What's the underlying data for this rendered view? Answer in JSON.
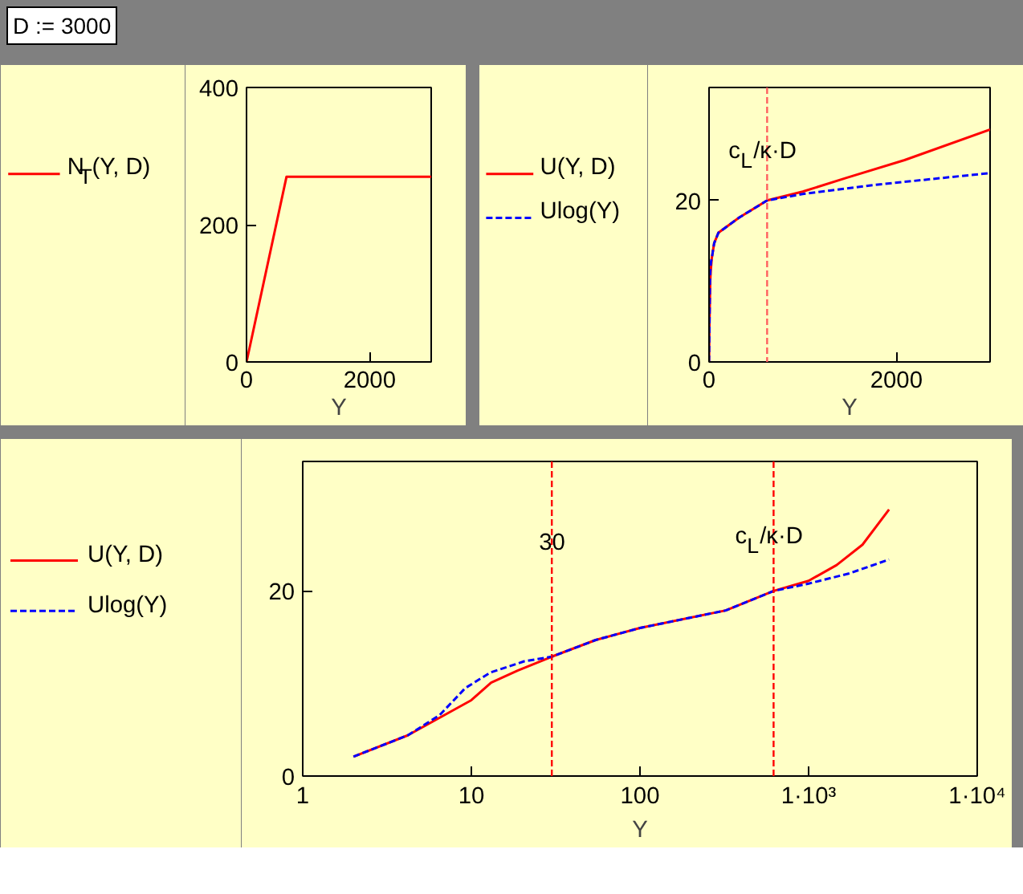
{
  "chart_data": [
    {
      "type": "line",
      "annotations": [
        "D := 3000"
      ],
      "xlabel": "Y",
      "xlim": [
        0,
        3000
      ],
      "xticks": [
        0,
        2000
      ],
      "ylim": [
        0,
        400
      ],
      "yticks": [
        0,
        200,
        400
      ],
      "grid": false,
      "legend": "left",
      "series": [
        {
          "name": "N$_{T}$(Y, D)",
          "color": "#ff0000",
          "x": [
            0,
            650,
            3000
          ],
          "values": [
            0,
            270,
            270
          ]
        }
      ]
    },
    {
      "type": "line",
      "xlabel": "Y",
      "xlim": [
        0,
        3000
      ],
      "xticks": [
        0,
        2000
      ],
      "ylim": [
        0,
        34
      ],
      "yticks": [
        0,
        20
      ],
      "grid": false,
      "legend": "left",
      "ref_lines": [
        {
          "axis": "x",
          "value": 620,
          "label": "c$_{L}$/κ·D",
          "color": "#ff6060",
          "line_style": "dashed"
        }
      ],
      "series": [
        {
          "name": "U(Y, D)",
          "color": "#ff0000",
          "line_style": "solid",
          "x": [
            0,
            2,
            4.2,
            10,
            13.1,
            18.8,
            30,
            54.6,
            100,
            323,
            620,
            1000,
            1466,
            2087,
            3000
          ],
          "values": [
            0,
            2.1,
            4.4,
            8.2,
            10.1,
            11.4,
            12.9,
            14.7,
            16.0,
            17.9,
            20.0,
            21.1,
            22.8,
            25.0,
            28.8
          ]
        },
        {
          "name": "Ulog(Y)",
          "color": "#0000ff",
          "line_style": "dashed",
          "x": [
            0,
            2,
            4.2,
            6.5,
            9.2,
            13,
            20.6,
            30,
            54.6,
            100,
            323,
            620,
            1000,
            1745,
            3000
          ],
          "values": [
            0,
            2.1,
            4.4,
            6.6,
            9.5,
            11.2,
            12.4,
            12.9,
            14.7,
            16.0,
            17.9,
            20.0,
            20.8,
            21.9,
            23.4
          ]
        }
      ]
    },
    {
      "type": "line",
      "xlabel": "Y",
      "log": "x",
      "xlim": [
        1,
        10000
      ],
      "xticks": [
        1,
        10,
        100,
        {
          "value": 1000,
          "label": "1·10³"
        },
        {
          "value": 10000,
          "label": "1·10⁴"
        }
      ],
      "ylim": [
        0,
        34
      ],
      "yticks": [
        0,
        20
      ],
      "grid": false,
      "legend": "left",
      "ref_lines": [
        {
          "axis": "x",
          "value": 30,
          "label": "30",
          "color": "#ff0000",
          "line_style": "dashed"
        },
        {
          "axis": "x",
          "value": 620,
          "label": "c$_{L}$/κ·D",
          "color": "#ff0000",
          "line_style": "dashed"
        }
      ],
      "series": [
        {
          "name": "U(Y, D)",
          "color": "#ff0000",
          "line_style": "solid",
          "x": [
            2,
            4.2,
            10,
            13.1,
            18.8,
            30,
            54.6,
            100,
            323,
            620,
            1000,
            1466,
            2087,
            3000
          ],
          "values": [
            2.1,
            4.4,
            8.2,
            10.1,
            11.4,
            12.9,
            14.7,
            16.0,
            17.9,
            20.0,
            21.1,
            22.8,
            25.0,
            28.8
          ]
        },
        {
          "name": "Ulog(Y)",
          "color": "#0000ff",
          "line_style": "dashed",
          "x": [
            2,
            4.2,
            6.5,
            9.2,
            13,
            20.6,
            30,
            54.6,
            100,
            323,
            620,
            1000,
            1745,
            3000
          ],
          "values": [
            2.1,
            4.4,
            6.6,
            9.5,
            11.2,
            12.4,
            12.9,
            14.7,
            16.0,
            17.9,
            20.0,
            20.8,
            21.9,
            23.4
          ]
        }
      ]
    }
  ]
}
